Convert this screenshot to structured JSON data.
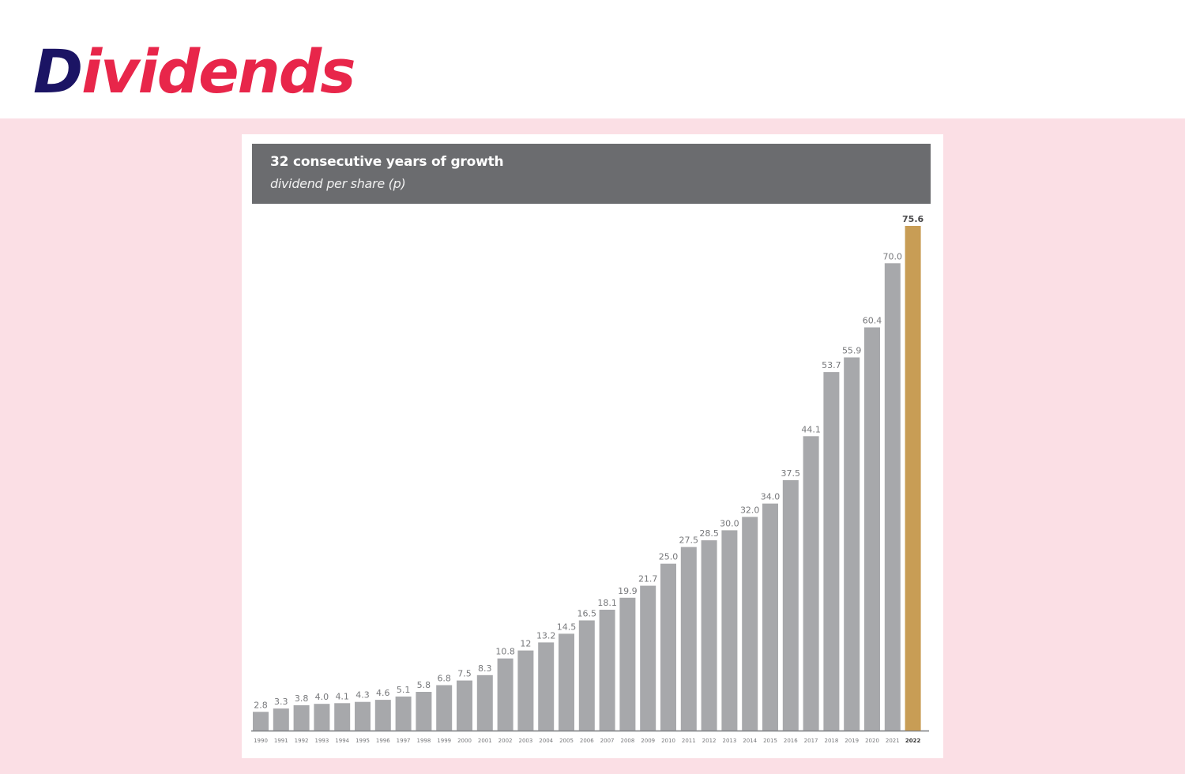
{
  "page": {
    "title_first": "D",
    "title_rest": "ividends"
  },
  "colors": {
    "title_dark": "#1b1464",
    "title_accent": "#e8264a",
    "background_panel": "#fbdfe5",
    "header_bar": "#6b6c6f",
    "bar": "#a7a8ab",
    "bar_highlight": "#c89d55"
  },
  "chart_data": {
    "type": "bar",
    "title": "32 consecutive years of growth",
    "subtitle": "dividend per share (p)",
    "xlabel": "",
    "ylabel": "",
    "ylim": [
      0,
      75.6
    ],
    "grid": false,
    "legend": "none",
    "categories": [
      "1990",
      "1991",
      "1992",
      "1993",
      "1994",
      "1995",
      "1996",
      "1997",
      "1998",
      "1999",
      "2000",
      "2001",
      "2002",
      "2003",
      "2004",
      "2005",
      "2006",
      "2007",
      "2008",
      "2009",
      "2010",
      "2011",
      "2012",
      "2013",
      "2014",
      "2015",
      "2016",
      "2017",
      "2018",
      "2019",
      "2020",
      "2021",
      "2022"
    ],
    "values": [
      2.8,
      3.3,
      3.8,
      4.0,
      4.1,
      4.3,
      4.6,
      5.1,
      5.8,
      6.8,
      7.5,
      8.3,
      10.8,
      12,
      13.2,
      14.5,
      16.5,
      18.1,
      19.9,
      21.7,
      25.0,
      27.5,
      28.5,
      30.0,
      32.0,
      34.0,
      37.5,
      44.1,
      53.7,
      55.9,
      60.4,
      70.0,
      75.6
    ],
    "labels": [
      "2.8",
      "3.3",
      "3.8",
      "4.0",
      "4.1",
      "4.3",
      "4.6",
      "5.1",
      "5.8",
      "6.8",
      "7.5",
      "8.3",
      "10.8",
      "12",
      "13.2",
      "14.5",
      "16.5",
      "18.1",
      "19.9",
      "21.7",
      "25.0",
      "27.5",
      "28.5",
      "30.0",
      "32.0",
      "34.0",
      "37.5",
      "44.1",
      "53.7",
      "55.9",
      "60.4",
      "70.0",
      "75.6"
    ],
    "highlight_category": "2022"
  }
}
